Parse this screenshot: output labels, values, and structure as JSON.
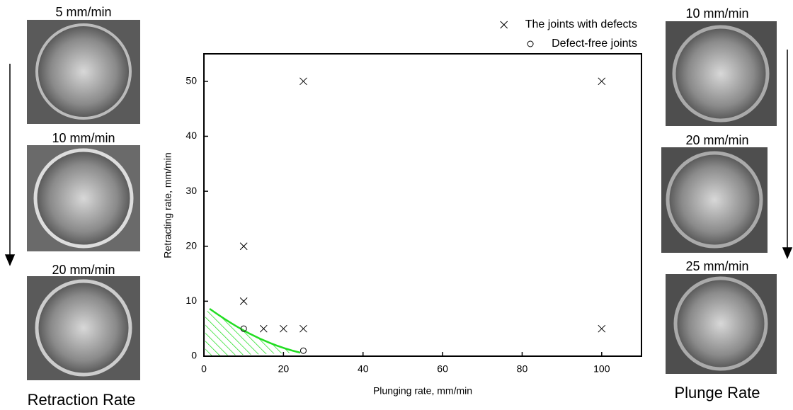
{
  "chart_data": {
    "type": "scatter",
    "x_label": "Plunging rate, mm/min",
    "y_label": "Retracting rate, mm/min",
    "xlim": [
      0,
      110
    ],
    "xticks": [
      0,
      20,
      40,
      60,
      80,
      100
    ],
    "ylim": [
      0,
      55
    ],
    "yticks": [
      0,
      10,
      20,
      30,
      40,
      50
    ],
    "legend": "top-right",
    "series": [
      {
        "name": "The joints with defects",
        "color": "#000000",
        "marker": "x",
        "x": [
          10,
          10,
          15,
          20,
          25,
          25,
          100,
          100
        ],
        "y": [
          20,
          10,
          5,
          5,
          5,
          50,
          50,
          5
        ]
      },
      {
        "name": "Defect-free joints",
        "color": "#000000",
        "marker": "o",
        "x": [
          10,
          25
        ],
        "y": [
          5,
          1
        ]
      }
    ]
  },
  "left_panel": {
    "labels": [
      "5 mm/min",
      "10 mm/min",
      "20 mm/min"
    ],
    "caption": "Retraction Rate"
  },
  "right_panel": {
    "labels": [
      "10 mm/min",
      "20 mm/min",
      "25 mm/min"
    ],
    "caption": "Plunge Rate"
  }
}
